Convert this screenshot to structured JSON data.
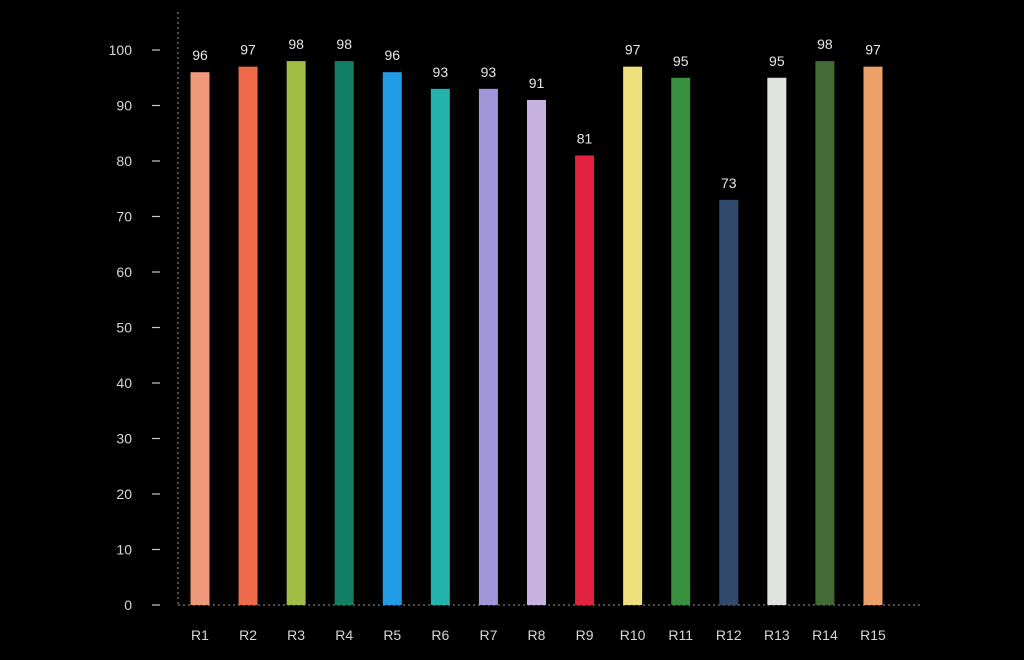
{
  "chart_data": {
    "type": "bar",
    "categories": [
      "R1",
      "R2",
      "R3",
      "R4",
      "R5",
      "R6",
      "R7",
      "R8",
      "R9",
      "R10",
      "R11",
      "R12",
      "R13",
      "R14",
      "R15"
    ],
    "values": [
      96,
      97,
      98,
      98,
      96,
      93,
      93,
      91,
      81,
      97,
      95,
      73,
      95,
      98,
      97
    ],
    "colors": [
      "#f0987a",
      "#ee6a4b",
      "#a2bd45",
      "#138066",
      "#239ce8",
      "#22b3ae",
      "#a196da",
      "#c7b2e2",
      "#e1213f",
      "#efe07c",
      "#3a8f3e",
      "#324a6e",
      "#e0e2df",
      "#446a36",
      "#eda06a"
    ],
    "yticks": [
      "0",
      "10",
      "20",
      "30",
      "40",
      "50",
      "60",
      "70",
      "80",
      "90",
      "100"
    ],
    "ylim": [
      0,
      100
    ],
    "background": "#000000",
    "grid": false,
    "legend": "none"
  }
}
